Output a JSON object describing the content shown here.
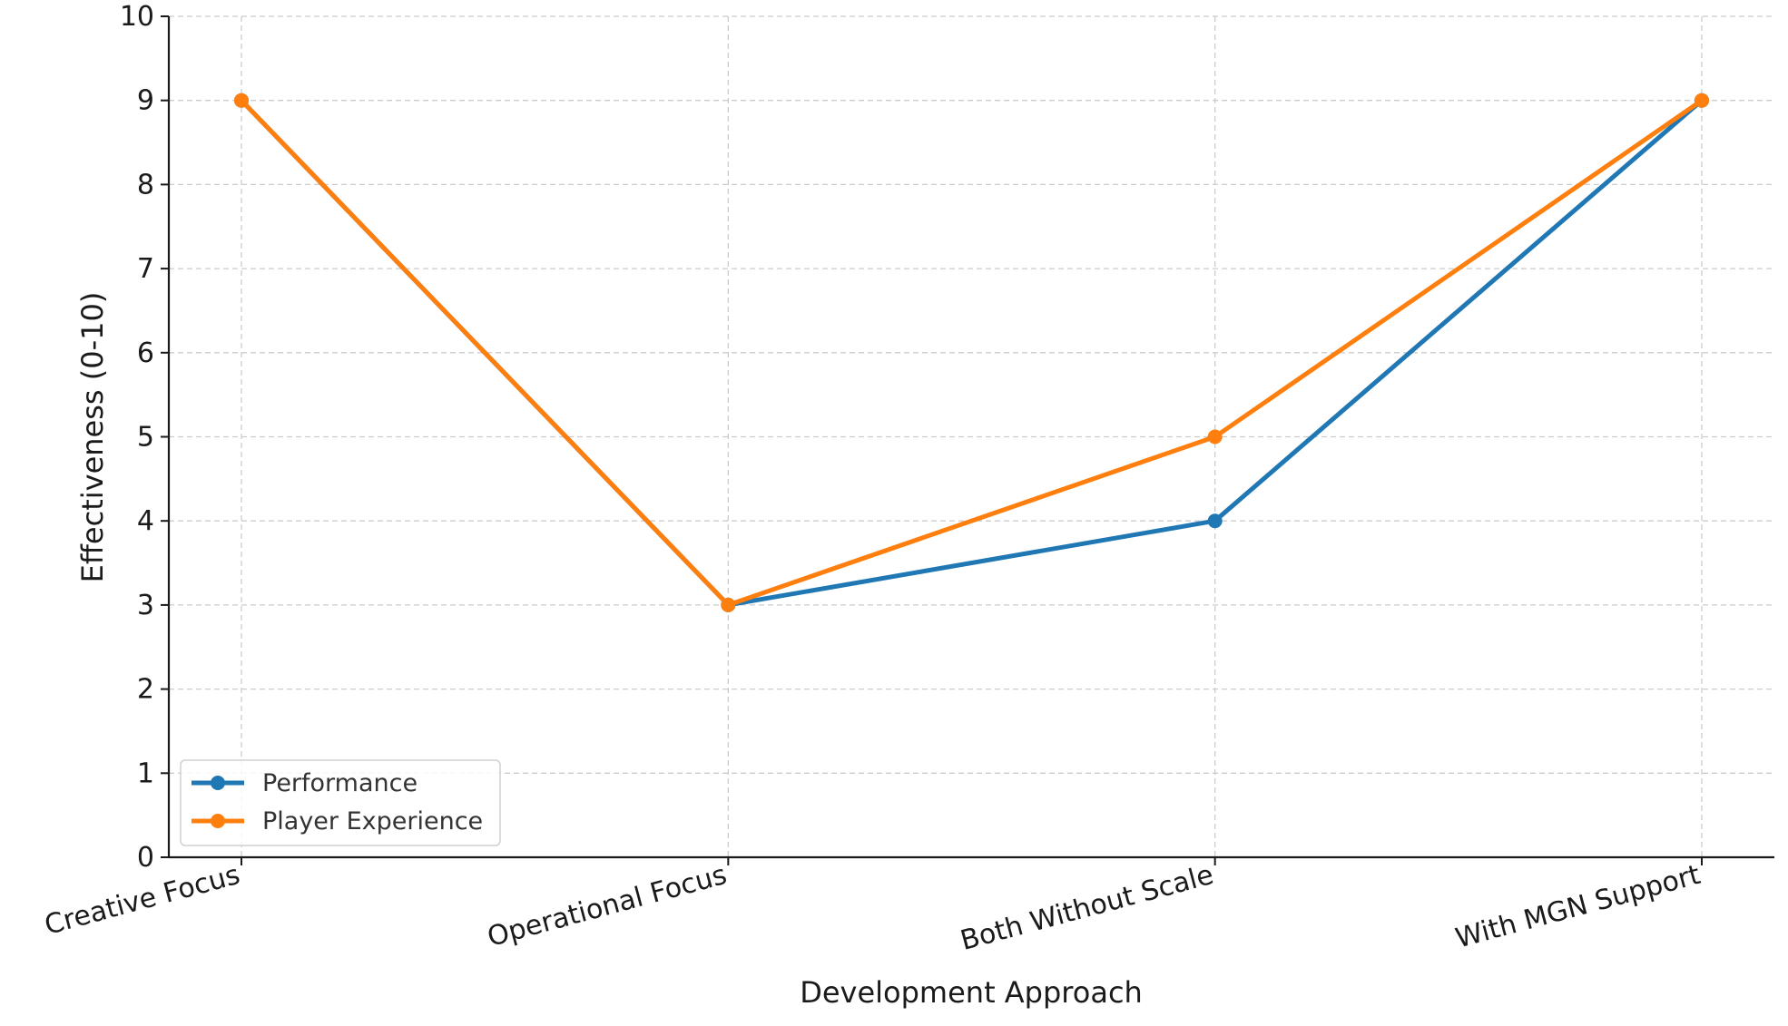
{
  "chart_data": {
    "type": "line",
    "title": "",
    "xlabel": "Development Approach",
    "ylabel": "Effectiveness (0-10)",
    "categories": [
      "Creative Focus",
      "Operational Focus",
      "Both Without Scale",
      "With MGN Support"
    ],
    "ylim": [
      0,
      10
    ],
    "yticks": [
      0,
      1,
      2,
      3,
      4,
      5,
      6,
      7,
      8,
      9,
      10
    ],
    "grid": true,
    "legend_position": "lower-left",
    "series": [
      {
        "name": "Performance",
        "values": [
          9,
          3,
          4,
          9
        ],
        "color": "#1f77b4"
      },
      {
        "name": "Player Experience",
        "values": [
          9,
          3,
          5,
          9
        ],
        "color": "#ff7f0e"
      }
    ]
  }
}
